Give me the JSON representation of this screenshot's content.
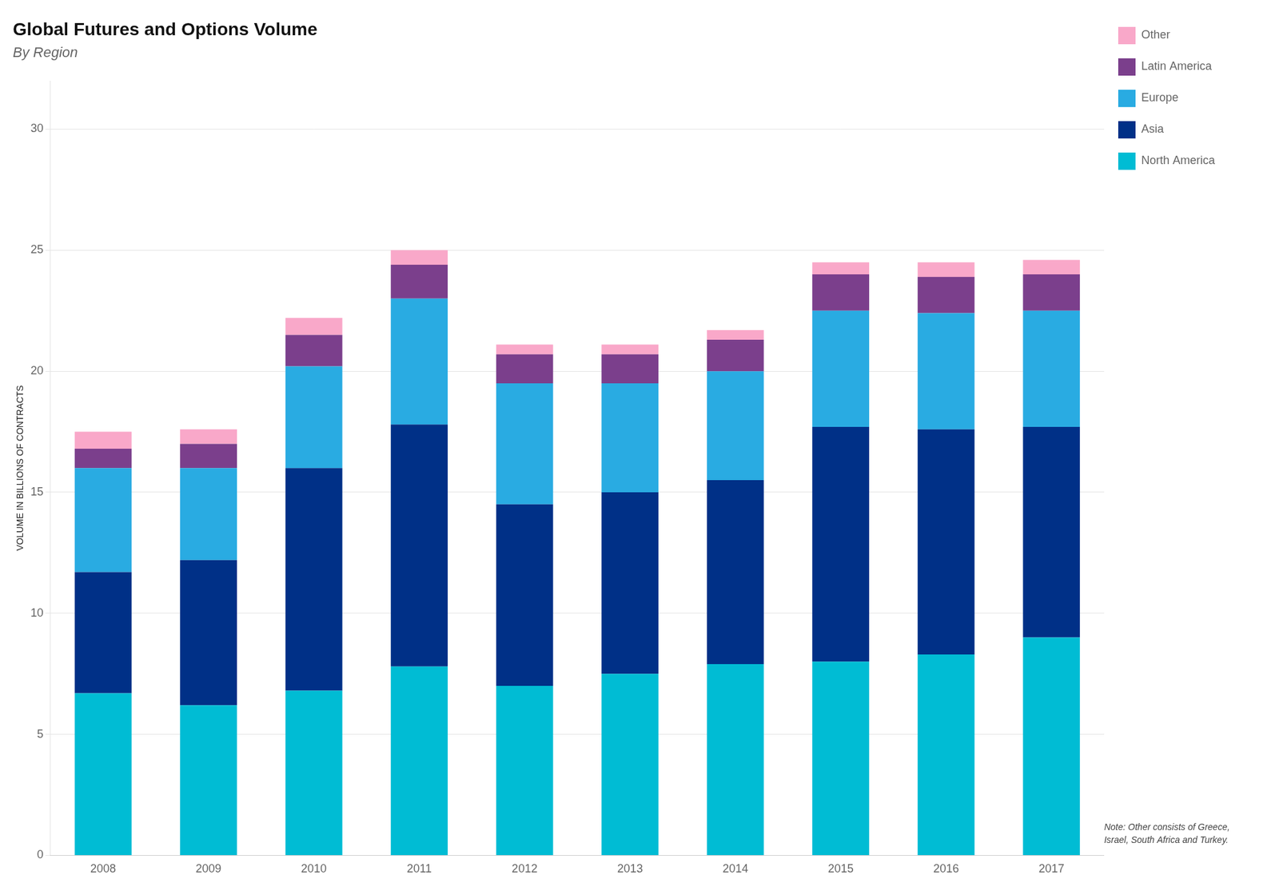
{
  "chart_data": {
    "type": "bar",
    "title": "Global Futures and Options Volume",
    "subtitle": "By Region",
    "y_label": "VOLUME IN BILLIONS OF CONTRACTS",
    "categories": [
      "2008",
      "2009",
      "2010",
      "2011",
      "2012",
      "2013",
      "2014",
      "2015",
      "2016",
      "2017"
    ],
    "series": [
      {
        "name": "North America",
        "color": "#00bcd4",
        "values": [
          6.7,
          6.2,
          6.8,
          7.8,
          7.0,
          7.5,
          7.9,
          8.0,
          8.3,
          9.0
        ]
      },
      {
        "name": "Asia",
        "color": "#003087",
        "values": [
          5.0,
          6.0,
          9.2,
          10.0,
          7.5,
          7.5,
          7.6,
          9.7,
          9.3,
          8.7
        ]
      },
      {
        "name": "Europe",
        "color": "#29abe2",
        "values": [
          4.3,
          3.8,
          4.2,
          5.2,
          5.0,
          4.5,
          4.5,
          4.8,
          4.8,
          4.8
        ]
      },
      {
        "name": "Latin America",
        "color": "#7b3f8c",
        "values": [
          0.8,
          1.0,
          1.3,
          1.4,
          1.2,
          1.2,
          1.3,
          1.5,
          1.5,
          1.5
        ]
      },
      {
        "name": "Other",
        "color": "#f9a8c9",
        "values": [
          0.7,
          0.6,
          0.7,
          0.6,
          0.4,
          0.4,
          0.4,
          0.5,
          0.6,
          0.6
        ]
      }
    ],
    "stacked": true,
    "ylim": [
      0,
      32
    ],
    "yticks": [
      0,
      5,
      10,
      15,
      20,
      25,
      30
    ],
    "grid": true,
    "legend": "right",
    "annotations": [
      "Note: Other consists of Greece,\nIsrael, South Africa and Turkey."
    ]
  }
}
